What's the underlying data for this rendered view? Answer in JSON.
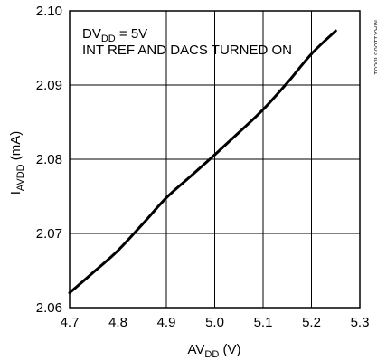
{
  "figure_id": "MAX11008 toc01",
  "chart_data": {
    "type": "line",
    "annotation": {
      "line1": {
        "prefix": "DV",
        "sub": "DD",
        "suffix": " = 5V"
      },
      "line2": "INT REF AND DACS TURNED ON"
    },
    "xlabel": {
      "prefix": "AV",
      "sub": "DD",
      "suffix": " (V)"
    },
    "ylabel": {
      "prefix": "I",
      "sub": "AVDD",
      "suffix": " (mA)"
    },
    "xlim": [
      4.7,
      5.3
    ],
    "ylim": [
      2.06,
      2.1
    ],
    "x_ticks": [
      4.7,
      4.8,
      4.9,
      5.0,
      5.1,
      5.2,
      5.3
    ],
    "x_tick_labels": [
      "4.7",
      "4.8",
      "4.9",
      "5.0",
      "5.1",
      "5.2",
      "5.3"
    ],
    "y_ticks": [
      2.06,
      2.07,
      2.08,
      2.09,
      2.1
    ],
    "y_tick_labels": [
      "2.06",
      "2.07",
      "2.08",
      "2.09",
      "2.10"
    ],
    "grid": true,
    "series": [
      {
        "x": [
          4.7,
          4.75,
          4.8,
          4.85,
          4.9,
          4.95,
          5.0,
          5.05,
          5.1,
          5.15,
          5.2,
          5.25
        ],
        "y": [
          2.062,
          2.0648,
          2.0677,
          2.0712,
          2.0748,
          2.0777,
          2.0806,
          2.0836,
          2.0867,
          2.0903,
          2.0942,
          2.0973
        ]
      }
    ]
  }
}
